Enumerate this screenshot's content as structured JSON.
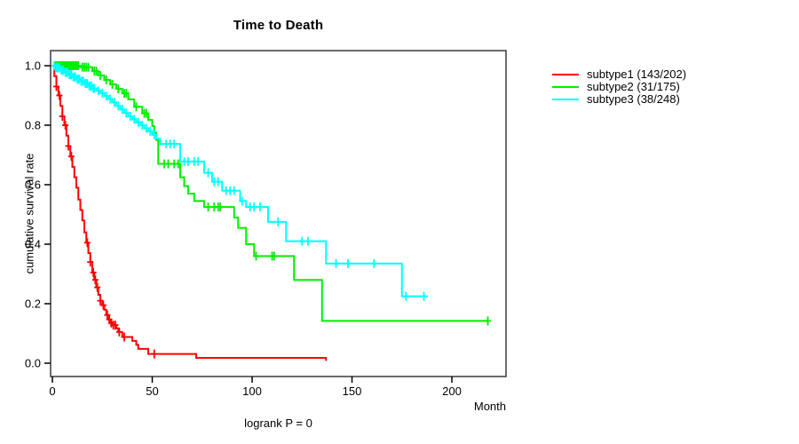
{
  "chart": {
    "title": "Time to Death",
    "ylabel": "cumulative survival rate",
    "xlabel": "Month",
    "footnote": "logrank P = 0"
  },
  "chart_data": {
    "type": "line",
    "subtype": "kaplan-meier-step",
    "title": "Time to Death",
    "xlabel": "Month",
    "ylabel": "cumulative survival rate",
    "annotation": "logrank P = 0",
    "xlim": [
      0,
      227
    ],
    "ylim": [
      0.0,
      1.0
    ],
    "grid": false,
    "legend_position": "right-outside",
    "xticks": {
      "values": [
        0,
        50,
        100,
        150,
        200
      ],
      "labels": [
        "0",
        "50",
        "100",
        "150",
        "200"
      ]
    },
    "yticks": {
      "values": [
        0.0,
        0.2,
        0.4,
        0.6,
        0.8,
        1.0
      ],
      "labels": [
        "0.0",
        "0.2",
        "0.4",
        "0.6",
        "0.8",
        "1.0"
      ]
    },
    "series": [
      {
        "name": "subtype1",
        "label": "subtype1 (143/202)",
        "events": 143,
        "n": 202,
        "color": "#FF0000",
        "end_month": 137,
        "steps": [
          [
            0,
            1.0
          ],
          [
            1,
            0.965
          ],
          [
            2,
            0.93
          ],
          [
            3,
            0.9
          ],
          [
            4,
            0.865
          ],
          [
            5,
            0.83
          ],
          [
            6,
            0.8
          ],
          [
            7,
            0.765
          ],
          [
            8,
            0.73
          ],
          [
            9,
            0.695
          ],
          [
            10,
            0.66
          ],
          [
            11,
            0.625
          ],
          [
            12,
            0.59
          ],
          [
            13,
            0.55
          ],
          [
            14,
            0.515
          ],
          [
            15,
            0.48
          ],
          [
            16,
            0.44
          ],
          [
            17,
            0.405
          ],
          [
            18,
            0.37
          ],
          [
            19,
            0.34
          ],
          [
            20,
            0.305
          ],
          [
            21,
            0.28
          ],
          [
            22,
            0.255
          ],
          [
            23,
            0.23
          ],
          [
            24,
            0.21
          ],
          [
            25,
            0.195
          ],
          [
            26,
            0.18
          ],
          [
            27,
            0.162
          ],
          [
            28,
            0.147
          ],
          [
            29,
            0.135
          ],
          [
            30,
            0.128
          ],
          [
            32,
            0.117
          ],
          [
            33,
            0.105
          ],
          [
            35,
            0.088
          ],
          [
            40,
            0.075
          ],
          [
            42,
            0.062
          ],
          [
            43,
            0.048
          ],
          [
            48,
            0.031
          ],
          [
            72,
            0.018
          ],
          [
            137,
            0.008
          ]
        ],
        "censor_months": [
          2,
          3.5,
          5,
          6.5,
          8,
          9.5,
          17.5,
          19,
          20.5,
          21.5,
          22.5,
          24,
          25.5,
          27.5,
          28.5,
          29.5,
          30.5,
          31.5,
          33.5,
          36,
          51
        ]
      },
      {
        "name": "subtype2",
        "label": "subtype2 (31/175)",
        "events": 31,
        "n": 175,
        "color": "#00EE00",
        "end_month": 218,
        "steps": [
          [
            0,
            1.0
          ],
          [
            14,
            0.995
          ],
          [
            20,
            0.982
          ],
          [
            23,
            0.967
          ],
          [
            26,
            0.952
          ],
          [
            29,
            0.937
          ],
          [
            32,
            0.922
          ],
          [
            35,
            0.907
          ],
          [
            38,
            0.887
          ],
          [
            41,
            0.862
          ],
          [
            45,
            0.84
          ],
          [
            48,
            0.818
          ],
          [
            50,
            0.797
          ],
          [
            51,
            0.775
          ],
          [
            52,
            0.75
          ],
          [
            53,
            0.67
          ],
          [
            64,
            0.625
          ],
          [
            66,
            0.595
          ],
          [
            68,
            0.57
          ],
          [
            71,
            0.545
          ],
          [
            76,
            0.525
          ],
          [
            91,
            0.49
          ],
          [
            93,
            0.455
          ],
          [
            97,
            0.4
          ],
          [
            101,
            0.36
          ],
          [
            121,
            0.28
          ],
          [
            135,
            0.142
          ]
        ],
        "censor_months": [
          1,
          1.5,
          2,
          2.5,
          3,
          3.5,
          4,
          4.5,
          5,
          5.5,
          6,
          6.5,
          7,
          7.5,
          8,
          8.5,
          9,
          9.5,
          10,
          10.5,
          11,
          11.5,
          12,
          12.5,
          13,
          15,
          16,
          17,
          18,
          21,
          22,
          24,
          27,
          30,
          33,
          36,
          37,
          42,
          46,
          47,
          56,
          58,
          61,
          63,
          78,
          81,
          83,
          84,
          102,
          110,
          111,
          218
        ]
      },
      {
        "name": "subtype3",
        "label": "subtype3 (38/248)",
        "events": 38,
        "n": 248,
        "color": "#00FFFF",
        "end_month": 188,
        "steps": [
          [
            0,
            1.0
          ],
          [
            2,
            0.993
          ],
          [
            4,
            0.985
          ],
          [
            6,
            0.978
          ],
          [
            8,
            0.97
          ],
          [
            10,
            0.962
          ],
          [
            12,
            0.955
          ],
          [
            14,
            0.948
          ],
          [
            16,
            0.94
          ],
          [
            18,
            0.932
          ],
          [
            20,
            0.924
          ],
          [
            22,
            0.916
          ],
          [
            24,
            0.908
          ],
          [
            26,
            0.898
          ],
          [
            28,
            0.888
          ],
          [
            30,
            0.877
          ],
          [
            32,
            0.865
          ],
          [
            34,
            0.853
          ],
          [
            36,
            0.841
          ],
          [
            38,
            0.83
          ],
          [
            40,
            0.82
          ],
          [
            42,
            0.81
          ],
          [
            44,
            0.8
          ],
          [
            46,
            0.79
          ],
          [
            48,
            0.78
          ],
          [
            50,
            0.768
          ],
          [
            52,
            0.755
          ],
          [
            54,
            0.737
          ],
          [
            64,
            0.678
          ],
          [
            76,
            0.64
          ],
          [
            80,
            0.61
          ],
          [
            85,
            0.58
          ],
          [
            94,
            0.545
          ],
          [
            97,
            0.525
          ],
          [
            108,
            0.475
          ],
          [
            117,
            0.41
          ],
          [
            137,
            0.335
          ],
          [
            175,
            0.225
          ]
        ],
        "censor_months": [
          1,
          2,
          2.5,
          3,
          3.5,
          4.5,
          5,
          5.5,
          6.5,
          7,
          7.5,
          8.5,
          9,
          9.5,
          10.5,
          11,
          11.5,
          12.5,
          13,
          13.5,
          14.5,
          15,
          15.5,
          16.5,
          17,
          17.5,
          18.5,
          19,
          19.5,
          20.5,
          21,
          23,
          25,
          27,
          29,
          31,
          33,
          35,
          37,
          39,
          41,
          43,
          45,
          47,
          49,
          51,
          57,
          59,
          61,
          66,
          68,
          71,
          73,
          78,
          81,
          83,
          87,
          89,
          91,
          95,
          99,
          101,
          104,
          113,
          125,
          128,
          142,
          148,
          161,
          177,
          186
        ]
      }
    ]
  }
}
